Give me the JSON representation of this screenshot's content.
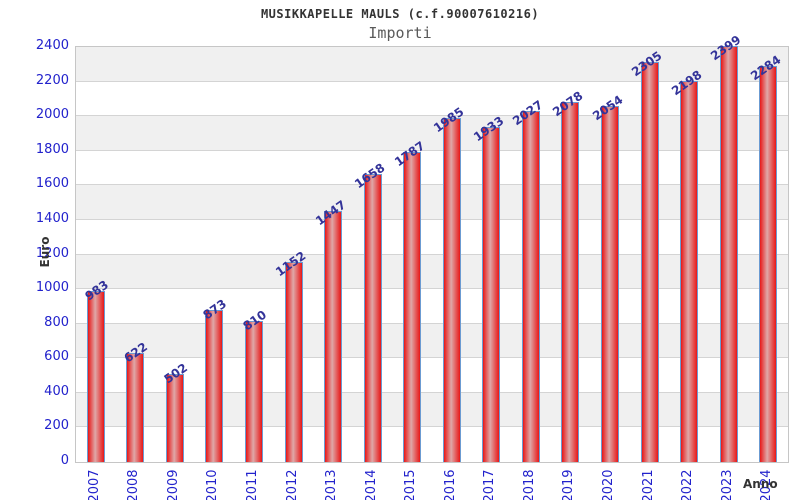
{
  "chart_data": {
    "type": "bar",
    "title": "MUSIKKAPELLE MAULS (c.f.90007610216)",
    "subtitle": "Importi",
    "xlabel": "Anno",
    "ylabel": "Euro",
    "categories": [
      "2007",
      "2008",
      "2009",
      "2010",
      "2011",
      "2012",
      "2013",
      "2014",
      "2015",
      "2016",
      "2017",
      "2018",
      "2019",
      "2020",
      "2021",
      "2022",
      "2023",
      "2024"
    ],
    "values": [
      983,
      622,
      502,
      873,
      810,
      1152,
      1447,
      1658,
      1787,
      1985,
      1933,
      2027,
      2078,
      2054,
      2305,
      2198,
      2399,
      2284
    ],
    "ylim": [
      0,
      2400
    ],
    "ytick_step": 200,
    "grid": true,
    "legend": "none",
    "colors": {
      "title": "#333333",
      "subtitle": "#5a5a5a",
      "tick_label": "#2222cc",
      "value_label": "#333399",
      "axis_title": "#333333",
      "bar_edge": "#6b9bd2",
      "bar_main": "#e81717",
      "bar_highlight": "#dfa8a8",
      "band_gray": "#f0f0f0",
      "band_white": "#ffffff",
      "grid_line": "#d4d4d4",
      "plot_border": "#c6c6c6"
    }
  }
}
